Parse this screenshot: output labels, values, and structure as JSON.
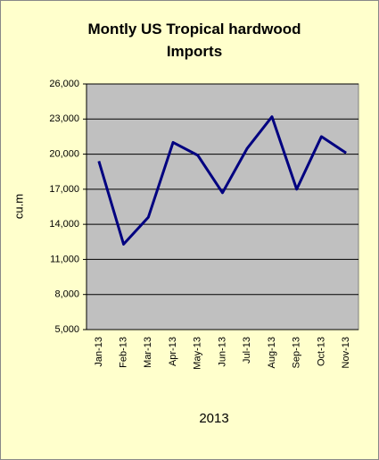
{
  "chart_data": {
    "type": "line",
    "title": "Montly US Tropical hardwood Imports",
    "y_label": "cu.m",
    "x_label": "2013",
    "categories": [
      "Jan-13",
      "Feb-13",
      "Mar-13",
      "Apr-13",
      "May-13",
      "Jun-13",
      "Jul-13",
      "Aug-13",
      "Sep-13",
      "Oct-13",
      "Nov-13"
    ],
    "series": [
      {
        "color": "#000080",
        "values": [
          19400,
          12300,
          14600,
          21000,
          19900,
          16700,
          20500,
          23200,
          17000,
          21500,
          20100
        ]
      }
    ],
    "ylim": [
      5000,
      26000
    ],
    "yticks": [
      {
        "value": 5000,
        "label": "5,000"
      },
      {
        "value": 8000,
        "label": "8,000"
      },
      {
        "value": 11000,
        "label": "11,000"
      },
      {
        "value": 14000,
        "label": "14,000"
      },
      {
        "value": 17000,
        "label": "17,000"
      },
      {
        "value": 20000,
        "label": "20,000"
      },
      {
        "value": 23000,
        "label": "23,000"
      },
      {
        "value": 26000,
        "label": "26,000"
      }
    ],
    "grid": true
  }
}
